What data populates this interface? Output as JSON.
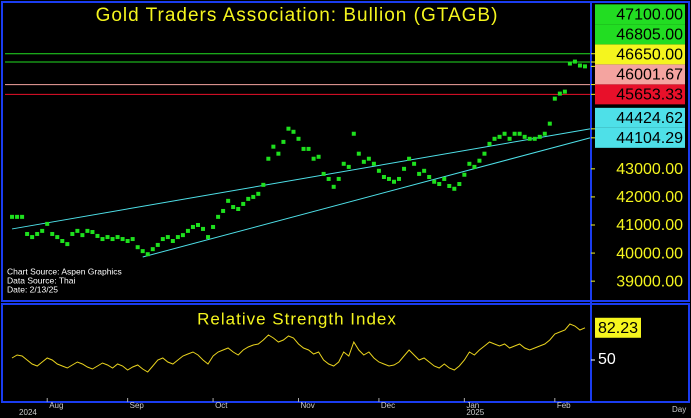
{
  "chart_data": [
    {
      "type": "dot",
      "title": "Gold Traders Association: Bullion (GTAGB)",
      "color": "#1ee01e",
      "values": [
        41290,
        41290,
        41290,
        40680,
        40570,
        40680,
        40790,
        41040,
        40680,
        40570,
        40430,
        40320,
        40680,
        40790,
        40640,
        40790,
        40750,
        40610,
        40500,
        40570,
        40500,
        40570,
        40500,
        40430,
        40500,
        40210,
        40070,
        39960,
        40140,
        40290,
        40500,
        40570,
        40430,
        40570,
        40640,
        40790,
        40930,
        41000,
        40860,
        40570,
        40930,
        41290,
        41500,
        41860,
        41640,
        41570,
        41750,
        41930,
        42000,
        42110,
        42430,
        43360,
        43790,
        43540,
        43960,
        44430,
        44320,
        44070,
        43710,
        43710,
        43360,
        43430,
        42820,
        42640,
        42360,
        42640,
        43180,
        43070,
        44250,
        43540,
        43250,
        43360,
        43180,
        42930,
        42710,
        42640,
        42540,
        42640,
        43000,
        43360,
        43180,
        42820,
        42930,
        42710,
        42540,
        42460,
        42640,
        42390,
        42290,
        42460,
        42790,
        43180,
        43070,
        43290,
        43540,
        43890,
        44070,
        44140,
        44250,
        44070,
        44250,
        44250,
        44140,
        44070,
        44070,
        44140,
        44250,
        44610,
        45500,
        45680,
        45750,
        46750,
        46820,
        46680,
        46650
      ],
      "xlim": [
        -1.4,
        115
      ],
      "ylim": [
        38400,
        48800
      ],
      "yticks": [
        {
          "value": 39000,
          "label": "39000.00"
        },
        {
          "value": 40000,
          "label": "40000.00"
        },
        {
          "value": 41000,
          "label": "41000.00"
        },
        {
          "value": 42000,
          "label": "42000.00"
        },
        {
          "value": 43000,
          "label": "43000.00"
        }
      ],
      "levels": [
        {
          "value": 47100,
          "label": "47100.00",
          "color": "#22dd22"
        },
        {
          "value": 46805,
          "label": "46805.00",
          "color": "#22dd22"
        },
        {
          "value": 46001.67,
          "color": "#f4a4a0"
        },
        {
          "value": 45653.33,
          "color": "#e8102a"
        }
      ],
      "last_price": {
        "value": 46650,
        "label": "46650.00",
        "color": "#f5f51e"
      },
      "trendlines": [
        {
          "x": [
            0,
            115
          ],
          "values": [
            40860,
            44424.62
          ],
          "color": "#4ee0e8"
        },
        {
          "x": [
            26,
            115
          ],
          "values": [
            39860,
            44104.29
          ],
          "color": "#4ee0e8"
        }
      ],
      "notes": [
        "Chart Source: Aspen Graphics",
        "Data Source: Thai",
        "Date: 2/13/25"
      ]
    },
    {
      "type": "line",
      "title": "Relative Strength Index",
      "color": "#e8d21e",
      "values": [
        52,
        55,
        54,
        50,
        46,
        44,
        48,
        52,
        50,
        46,
        44,
        42,
        45,
        48,
        46,
        43,
        41,
        44,
        47,
        45,
        42,
        46,
        44,
        40,
        43,
        45,
        41,
        38,
        44,
        50,
        52,
        48,
        46,
        50,
        54,
        56,
        58,
        55,
        50,
        46,
        54,
        58,
        60,
        62,
        58,
        55,
        60,
        63,
        65,
        66,
        70,
        75,
        72,
        68,
        70,
        74,
        72,
        66,
        62,
        60,
        56,
        58,
        50,
        46,
        44,
        48,
        58,
        54,
        68,
        60,
        55,
        58,
        52,
        48,
        46,
        44,
        45,
        48,
        54,
        60,
        55,
        50,
        52,
        48,
        44,
        42,
        46,
        42,
        40,
        44,
        50,
        58,
        55,
        60,
        64,
        68,
        66,
        64,
        66,
        62,
        64,
        66,
        62,
        60,
        62,
        64,
        66,
        70,
        76,
        78,
        80,
        86,
        84,
        80,
        82.23
      ],
      "xlim": [
        -1.4,
        115
      ],
      "ylim": [
        10,
        102
      ],
      "yticks": [
        50
      ],
      "xticks": [
        {
          "value": 7,
          "label": "Aug"
        },
        {
          "value": 23,
          "label": "Sep"
        },
        {
          "value": 40,
          "label": "Oct"
        },
        {
          "value": 57,
          "label": "Nov"
        },
        {
          "value": 73,
          "label": "Dec"
        },
        {
          "value": 90,
          "label": "Jan"
        },
        {
          "value": 108,
          "label": "Feb"
        }
      ],
      "year_labels": [
        {
          "value": 1,
          "label": "2024"
        },
        {
          "value": 90,
          "label": "2025"
        }
      ],
      "period": "Day"
    }
  ]
}
